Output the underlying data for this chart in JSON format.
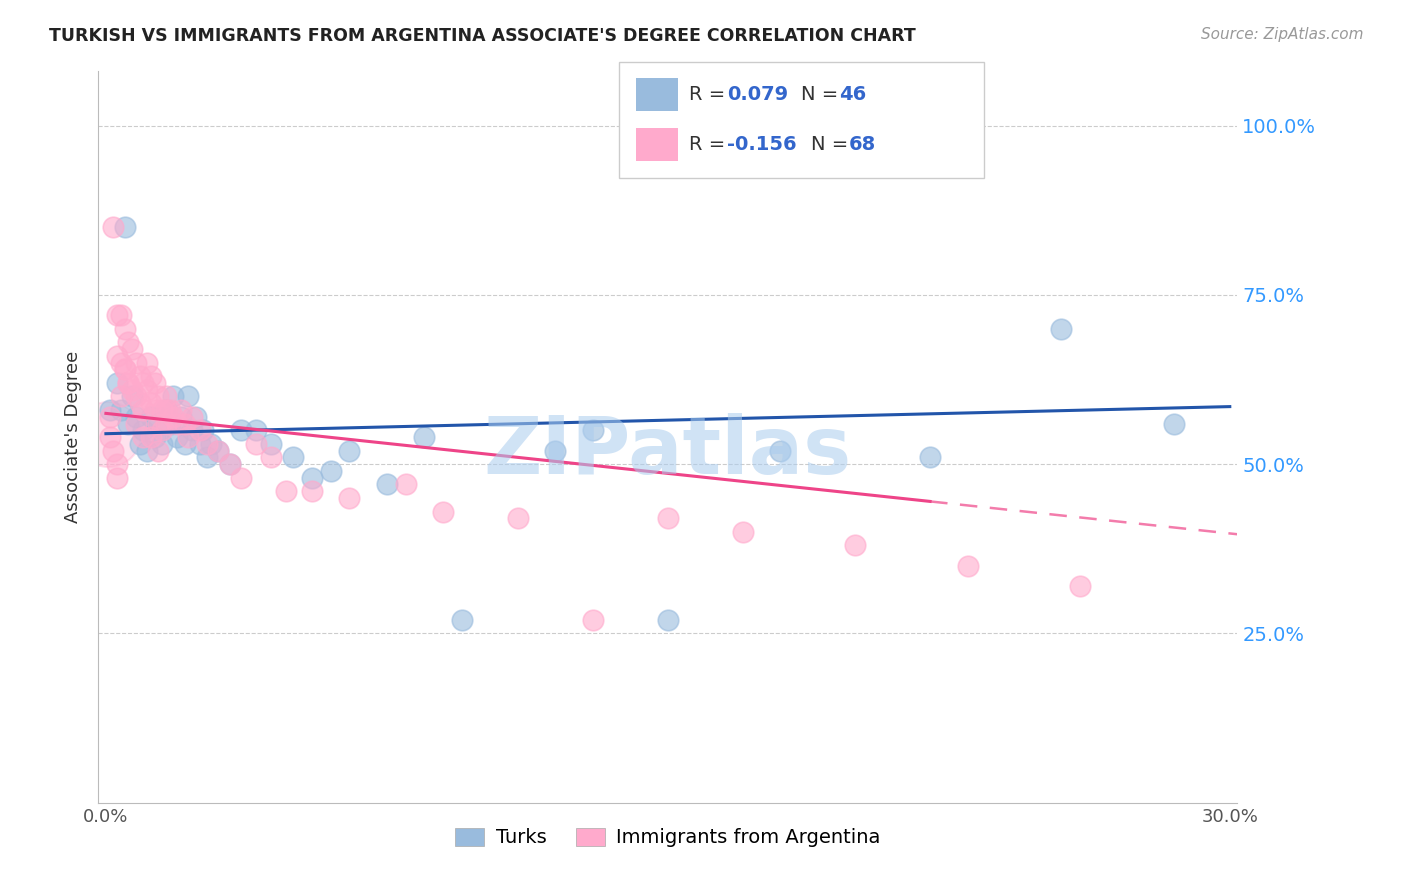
{
  "title": "TURKISH VS IMMIGRANTS FROM ARGENTINA ASSOCIATE'S DEGREE CORRELATION CHART",
  "source": "Source: ZipAtlas.com",
  "ylabel": "Associate's Degree",
  "legend_r1": "R = 0.079",
  "legend_n1": "N = 46",
  "legend_r2": "R = -0.156",
  "legend_n2": "N = 68",
  "blue_color": "#99BBDD",
  "pink_color": "#FFAACC",
  "trend_blue": "#2255AA",
  "trend_pink": "#EE4488",
  "watermark": "ZIPatlas",
  "watermark_color": "#AACCEE",
  "grid_color": "#CCCCCC",
  "xlim": [
    -0.002,
    0.302
  ],
  "ylim": [
    0.0,
    1.08
  ],
  "blue_dots_x": [
    0.001,
    0.003,
    0.004,
    0.005,
    0.006,
    0.007,
    0.008,
    0.009,
    0.01,
    0.011,
    0.012,
    0.013,
    0.014,
    0.015,
    0.016,
    0.017,
    0.018,
    0.019,
    0.02,
    0.021,
    0.022,
    0.023,
    0.024,
    0.025,
    0.026,
    0.027,
    0.028,
    0.03,
    0.033,
    0.036,
    0.04,
    0.044,
    0.05,
    0.055,
    0.065,
    0.075,
    0.085,
    0.095,
    0.12,
    0.15,
    0.18,
    0.22,
    0.255,
    0.285,
    0.13,
    0.06
  ],
  "blue_dots_y": [
    0.58,
    0.62,
    0.58,
    0.85,
    0.56,
    0.6,
    0.57,
    0.53,
    0.55,
    0.52,
    0.57,
    0.54,
    0.56,
    0.53,
    0.58,
    0.56,
    0.6,
    0.54,
    0.57,
    0.53,
    0.6,
    0.55,
    0.57,
    0.53,
    0.55,
    0.51,
    0.53,
    0.52,
    0.5,
    0.55,
    0.55,
    0.53,
    0.51,
    0.48,
    0.52,
    0.47,
    0.54,
    0.27,
    0.52,
    0.27,
    0.52,
    0.51,
    0.7,
    0.56,
    0.55,
    0.49
  ],
  "pink_dots_x": [
    0.001,
    0.002,
    0.003,
    0.003,
    0.004,
    0.004,
    0.005,
    0.005,
    0.006,
    0.006,
    0.007,
    0.007,
    0.008,
    0.008,
    0.009,
    0.009,
    0.01,
    0.01,
    0.011,
    0.011,
    0.012,
    0.012,
    0.013,
    0.013,
    0.014,
    0.014,
    0.015,
    0.015,
    0.016,
    0.016,
    0.017,
    0.018,
    0.019,
    0.02,
    0.021,
    0.022,
    0.023,
    0.025,
    0.027,
    0.03,
    0.033,
    0.036,
    0.04,
    0.044,
    0.048,
    0.055,
    0.065,
    0.08,
    0.09,
    0.11,
    0.13,
    0.15,
    0.17,
    0.2,
    0.23,
    0.26,
    0.001,
    0.002,
    0.003,
    0.003,
    0.004,
    0.005,
    0.006,
    0.008,
    0.01,
    0.012,
    0.014,
    0.016
  ],
  "pink_dots_y": [
    0.57,
    0.85,
    0.72,
    0.66,
    0.72,
    0.65,
    0.7,
    0.64,
    0.68,
    0.62,
    0.67,
    0.61,
    0.65,
    0.6,
    0.63,
    0.59,
    0.62,
    0.58,
    0.65,
    0.61,
    0.63,
    0.59,
    0.62,
    0.58,
    0.6,
    0.56,
    0.58,
    0.55,
    0.6,
    0.56,
    0.58,
    0.57,
    0.56,
    0.58,
    0.56,
    0.54,
    0.57,
    0.55,
    0.53,
    0.52,
    0.5,
    0.48,
    0.53,
    0.51,
    0.46,
    0.46,
    0.45,
    0.47,
    0.43,
    0.42,
    0.27,
    0.42,
    0.4,
    0.38,
    0.35,
    0.32,
    0.54,
    0.52,
    0.5,
    0.48,
    0.6,
    0.64,
    0.62,
    0.56,
    0.54,
    0.54,
    0.52,
    0.58
  ]
}
